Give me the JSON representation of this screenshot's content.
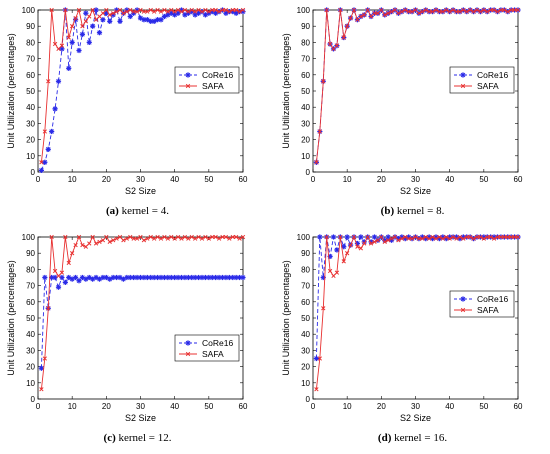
{
  "chart_data": [
    {
      "type": "line",
      "caption_label": "(a)",
      "caption_text": "kernel = 4.",
      "xlabel": "S2 Size",
      "ylabel": "Unit Utilization (percentages)",
      "xlim": [
        0,
        60
      ],
      "ylim": [
        0,
        100
      ],
      "xticks": [
        0,
        10,
        20,
        30,
        40,
        50,
        60
      ],
      "yticks": [
        0,
        10,
        20,
        30,
        40,
        50,
        60,
        70,
        80,
        90,
        100
      ],
      "legend_position": "middle-right",
      "series": [
        {
          "name": "CoRe16",
          "color": "#2a2ae8",
          "marker": "star",
          "dashed": true,
          "x": [
            1,
            2,
            3,
            4,
            5,
            6,
            7,
            8,
            9,
            10,
            11,
            12,
            13,
            14,
            15,
            16,
            17,
            18,
            19,
            20,
            21,
            22,
            23,
            24,
            25,
            26,
            27,
            28,
            29,
            30,
            31,
            32,
            33,
            34,
            35,
            36,
            37,
            38,
            39,
            40,
            41,
            42,
            43,
            44,
            45,
            46,
            47,
            48,
            49,
            50,
            51,
            52,
            53,
            54,
            55,
            56,
            57,
            58,
            59,
            60
          ],
          "y": [
            1,
            6,
            14,
            25,
            39,
            56,
            76,
            100,
            64,
            80,
            94,
            75,
            85,
            98,
            80,
            90,
            100,
            86,
            94,
            98,
            93,
            97,
            100,
            93,
            98,
            100,
            96,
            98,
            100,
            95,
            94,
            94,
            93,
            93,
            94,
            94,
            96,
            97,
            98,
            97,
            98,
            100,
            97,
            98,
            99,
            97,
            98,
            99,
            97,
            98,
            99,
            98,
            99,
            100,
            98,
            99,
            99,
            98,
            99,
            99
          ]
        },
        {
          "name": "SAFA",
          "color": "#e83030",
          "marker": "x",
          "dashed": false,
          "x": [
            1,
            2,
            3,
            4,
            5,
            6,
            7,
            8,
            9,
            10,
            11,
            12,
            13,
            14,
            15,
            16,
            17,
            18,
            19,
            20,
            21,
            22,
            23,
            24,
            25,
            26,
            27,
            28,
            29,
            30,
            31,
            32,
            33,
            34,
            35,
            36,
            37,
            38,
            39,
            40,
            41,
            42,
            43,
            44,
            45,
            46,
            47,
            48,
            49,
            50,
            51,
            52,
            53,
            54,
            55,
            56,
            57,
            58,
            59,
            60
          ],
          "y": [
            6,
            25,
            56,
            100,
            79,
            76,
            78,
            100,
            83,
            90,
            95,
            100,
            90,
            93,
            96,
            100,
            94,
            96,
            98,
            100,
            97,
            98,
            99,
            100,
            98,
            99,
            100,
            99,
            99,
            100,
            99,
            99,
            100,
            99,
            100,
            99,
            100,
            99,
            100,
            99,
            100,
            99,
            100,
            99,
            100,
            99,
            100,
            99,
            100,
            99,
            100,
            100,
            99,
            100,
            100,
            99,
            100,
            100,
            99,
            100
          ]
        }
      ]
    },
    {
      "type": "line",
      "caption_label": "(b)",
      "caption_text": "kernel = 8.",
      "xlabel": "S2 Size",
      "ylabel": "Unit Utilization (percentages)",
      "xlim": [
        0,
        60
      ],
      "ylim": [
        0,
        100
      ],
      "xticks": [
        0,
        10,
        20,
        30,
        40,
        50,
        60
      ],
      "yticks": [
        0,
        10,
        20,
        30,
        40,
        50,
        60,
        70,
        80,
        90,
        100
      ],
      "legend_position": "middle-right",
      "series": [
        {
          "name": "CoRe16",
          "color": "#2a2ae8",
          "marker": "star",
          "dashed": true,
          "x": [
            1,
            2,
            3,
            4,
            5,
            6,
            7,
            8,
            9,
            10,
            11,
            12,
            13,
            14,
            15,
            16,
            17,
            18,
            19,
            20,
            21,
            22,
            23,
            24,
            25,
            26,
            27,
            28,
            29,
            30,
            31,
            32,
            33,
            34,
            35,
            36,
            37,
            38,
            39,
            40,
            41,
            42,
            43,
            44,
            45,
            46,
            47,
            48,
            49,
            50,
            51,
            52,
            53,
            54,
            55,
            56,
            57,
            58,
            59,
            60
          ],
          "y": [
            6,
            25,
            56,
            100,
            79,
            76,
            78,
            100,
            83,
            90,
            95,
            100,
            94,
            96,
            97,
            100,
            96,
            98,
            98,
            100,
            97,
            98,
            99,
            100,
            98,
            99,
            100,
            99,
            99,
            100,
            98,
            99,
            100,
            99,
            99,
            100,
            99,
            99,
            100,
            99,
            100,
            99,
            99,
            100,
            99,
            100,
            99,
            100,
            99,
            100,
            99,
            100,
            100,
            99,
            100,
            100,
            99,
            100,
            100,
            100
          ]
        },
        {
          "name": "SAFA",
          "color": "#e83030",
          "marker": "x",
          "dashed": false,
          "x": [
            1,
            2,
            3,
            4,
            5,
            6,
            7,
            8,
            9,
            10,
            11,
            12,
            13,
            14,
            15,
            16,
            17,
            18,
            19,
            20,
            21,
            22,
            23,
            24,
            25,
            26,
            27,
            28,
            29,
            30,
            31,
            32,
            33,
            34,
            35,
            36,
            37,
            38,
            39,
            40,
            41,
            42,
            43,
            44,
            45,
            46,
            47,
            48,
            49,
            50,
            51,
            52,
            53,
            54,
            55,
            56,
            57,
            58,
            59,
            60
          ],
          "y": [
            6,
            25,
            56,
            100,
            79,
            76,
            78,
            100,
            83,
            90,
            95,
            100,
            94,
            96,
            97,
            100,
            96,
            98,
            98,
            100,
            97,
            98,
            99,
            100,
            98,
            99,
            100,
            99,
            99,
            100,
            98,
            99,
            100,
            99,
            99,
            100,
            99,
            99,
            100,
            99,
            100,
            99,
            99,
            100,
            99,
            100,
            99,
            100,
            99,
            100,
            99,
            100,
            100,
            99,
            100,
            100,
            99,
            100,
            100,
            100
          ]
        }
      ]
    },
    {
      "type": "line",
      "caption_label": "(c)",
      "caption_text": "kernel = 12.",
      "xlabel": "S2 Size",
      "ylabel": "Unit Utilization (percentages)",
      "xlim": [
        0,
        60
      ],
      "ylim": [
        0,
        100
      ],
      "xticks": [
        0,
        10,
        20,
        30,
        40,
        50,
        60
      ],
      "yticks": [
        0,
        10,
        20,
        30,
        40,
        50,
        60,
        70,
        80,
        90,
        100
      ],
      "legend_position": "lower-right",
      "series": [
        {
          "name": "CoRe16",
          "color": "#2a2ae8",
          "marker": "star",
          "dashed": true,
          "x": [
            1,
            2,
            3,
            4,
            5,
            6,
            7,
            8,
            9,
            10,
            11,
            12,
            13,
            14,
            15,
            16,
            17,
            18,
            19,
            20,
            21,
            22,
            23,
            24,
            25,
            26,
            27,
            28,
            29,
            30,
            31,
            32,
            33,
            34,
            35,
            36,
            37,
            38,
            39,
            40,
            41,
            42,
            43,
            44,
            45,
            46,
            47,
            48,
            49,
            50,
            51,
            52,
            53,
            54,
            55,
            56,
            57,
            58,
            59,
            60
          ],
          "y": [
            19,
            75,
            56,
            75,
            75,
            69,
            75,
            72,
            75,
            74,
            75,
            73,
            75,
            74,
            75,
            74,
            75,
            74,
            75,
            75,
            74,
            75,
            75,
            75,
            74,
            75,
            75,
            75,
            75,
            75,
            75,
            75,
            75,
            75,
            75,
            75,
            75,
            75,
            75,
            75,
            75,
            75,
            75,
            75,
            75,
            75,
            75,
            75,
            75,
            75,
            75,
            75,
            75,
            75,
            75,
            75,
            75,
            75,
            75,
            75
          ]
        },
        {
          "name": "SAFA",
          "color": "#e83030",
          "marker": "x",
          "dashed": false,
          "x": [
            1,
            2,
            3,
            4,
            5,
            6,
            7,
            8,
            9,
            10,
            11,
            12,
            13,
            14,
            15,
            16,
            17,
            18,
            19,
            20,
            21,
            22,
            23,
            24,
            25,
            26,
            27,
            28,
            29,
            30,
            31,
            32,
            33,
            34,
            35,
            36,
            37,
            38,
            39,
            40,
            41,
            42,
            43,
            44,
            45,
            46,
            47,
            48,
            49,
            50,
            51,
            52,
            53,
            54,
            55,
            56,
            57,
            58,
            59,
            60
          ],
          "y": [
            6,
            25,
            56,
            100,
            79,
            76,
            78,
            100,
            84,
            90,
            95,
            100,
            95,
            94,
            96,
            100,
            96,
            97,
            98,
            100,
            97,
            98,
            99,
            100,
            98,
            99,
            100,
            99,
            99,
            100,
            98,
            99,
            100,
            99,
            100,
            99,
            100,
            99,
            100,
            99,
            100,
            99,
            100,
            99,
            100,
            99,
            100,
            99,
            100,
            99,
            100,
            100,
            99,
            100,
            100,
            99,
            100,
            100,
            99,
            100
          ]
        }
      ]
    },
    {
      "type": "line",
      "caption_label": "(d)",
      "caption_text": "kernel = 16.",
      "xlabel": "S2 Size",
      "ylabel": "Unit Utilization (percentages)",
      "xlim": [
        0,
        60
      ],
      "ylim": [
        0,
        100
      ],
      "xticks": [
        0,
        10,
        20,
        30,
        40,
        50,
        60
      ],
      "yticks": [
        0,
        10,
        20,
        30,
        40,
        50,
        60,
        70,
        80,
        90,
        100
      ],
      "legend_position": "upper-right",
      "series": [
        {
          "name": "CoRe16",
          "color": "#2a2ae8",
          "marker": "star",
          "dashed": true,
          "x": [
            1,
            2,
            3,
            4,
            5,
            6,
            7,
            8,
            9,
            10,
            11,
            12,
            13,
            14,
            15,
            16,
            17,
            18,
            19,
            20,
            21,
            22,
            23,
            24,
            25,
            26,
            27,
            28,
            29,
            30,
            31,
            32,
            33,
            34,
            35,
            36,
            37,
            38,
            39,
            40,
            41,
            42,
            43,
            44,
            45,
            46,
            47,
            48,
            49,
            50,
            51,
            52,
            53,
            54,
            55,
            56,
            57,
            58,
            59,
            60
          ],
          "y": [
            25,
            100,
            75,
            100,
            88,
            100,
            92,
            100,
            94,
            100,
            95,
            100,
            96,
            100,
            97,
            100,
            97,
            100,
            98,
            100,
            98,
            100,
            98,
            100,
            99,
            100,
            99,
            100,
            99,
            100,
            99,
            100,
            99,
            100,
            99,
            100,
            99,
            100,
            99,
            100,
            100,
            100,
            99,
            100,
            100,
            100,
            99,
            100,
            100,
            100,
            100,
            100,
            100,
            100,
            100,
            100,
            100,
            100,
            100,
            100
          ]
        },
        {
          "name": "SAFA",
          "color": "#e83030",
          "marker": "x",
          "dashed": false,
          "x": [
            1,
            2,
            3,
            4,
            5,
            6,
            7,
            8,
            9,
            10,
            11,
            12,
            13,
            14,
            15,
            16,
            17,
            18,
            19,
            20,
            21,
            22,
            23,
            24,
            25,
            26,
            27,
            28,
            29,
            30,
            31,
            32,
            33,
            34,
            35,
            36,
            37,
            38,
            39,
            40,
            41,
            42,
            43,
            44,
            45,
            46,
            47,
            48,
            49,
            50,
            51,
            52,
            53,
            54,
            55,
            56,
            57,
            58,
            59,
            60
          ],
          "y": [
            6,
            25,
            56,
            100,
            79,
            76,
            78,
            100,
            85,
            90,
            95,
            100,
            94,
            93,
            96,
            100,
            96,
            97,
            98,
            100,
            97,
            98,
            99,
            100,
            98,
            99,
            100,
            99,
            99,
            100,
            99,
            99,
            100,
            99,
            100,
            99,
            100,
            99,
            100,
            99,
            100,
            99,
            100,
            99,
            100,
            100,
            99,
            100,
            100,
            99,
            100,
            100,
            99,
            100,
            100,
            100,
            100,
            100,
            100,
            100
          ]
        }
      ]
    }
  ]
}
